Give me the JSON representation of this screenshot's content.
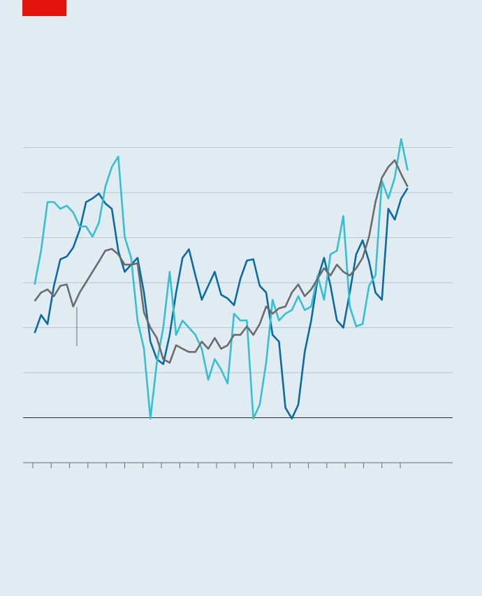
{
  "chart_data": {
    "type": "line",
    "xlim": [
      -0.53,
      22.85
    ],
    "xticks": [
      0,
      1,
      2,
      3,
      4,
      5,
      6,
      7,
      8,
      9,
      10,
      11,
      12,
      13,
      14,
      15,
      16,
      17,
      18,
      19,
      20
    ],
    "ylim": [
      -1,
      7
    ],
    "yticks": [
      0,
      1,
      2,
      3,
      4,
      5,
      6
    ],
    "grid": true,
    "x": [
      0.1,
      0.45,
      0.8,
      1.15,
      1.5,
      1.85,
      2.2,
      2.55,
      2.9,
      3.25,
      3.6,
      3.95,
      4.3,
      4.65,
      5,
      5.35,
      5.7,
      6.05,
      6.4,
      6.75,
      7.1,
      7.45,
      7.8,
      8.15,
      8.5,
      8.85,
      9.2,
      9.55,
      9.9,
      10.25,
      10.6,
      10.95,
      11.3,
      11.65,
      12,
      12.35,
      12.7,
      13.05,
      13.4,
      13.75,
      14.1,
      14.45,
      14.8,
      15.15,
      15.5,
      15.85,
      16.2,
      16.55,
      16.9,
      17.25,
      17.6,
      17.95,
      18.3,
      18.65,
      19,
      19.35,
      19.7,
      20.05,
      20.4
    ],
    "series": [
      {
        "color": "#0c6aa3",
        "values": [
          1.88,
          2.28,
          2.08,
          2.93,
          3.52,
          3.58,
          3.78,
          4.17,
          4.79,
          4.87,
          4.98,
          4.76,
          4.64,
          3.71,
          3.24,
          3.4,
          3.55,
          2.78,
          1.69,
          1.3,
          1.19,
          1.84,
          2.78,
          3.55,
          3.74,
          3.16,
          2.62,
          2.93,
          3.24,
          2.73,
          2.65,
          2.5,
          3.09,
          3.49,
          3.52,
          2.93,
          2.78,
          1.84,
          1.69,
          0.22,
          -0.02,
          0.29,
          1.46,
          2.16,
          3.09,
          3.55,
          2.93,
          2.16,
          2.0,
          2.78,
          3.63,
          3.94,
          3.47,
          2.78,
          2.62,
          4.64,
          4.4,
          4.87,
          5.1
        ]
      },
      {
        "color": "#36bfd1",
        "values": [
          2.96,
          3.71,
          4.79,
          4.79,
          4.64,
          4.71,
          4.56,
          4.25,
          4.25,
          4.02,
          4.33,
          5.13,
          5.57,
          5.8,
          4.02,
          3.55,
          2.16,
          1.53,
          -0.02,
          1.22,
          2.0,
          3.24,
          1.84,
          2.16,
          2.0,
          1.84,
          1.53,
          0.84,
          1.3,
          1.07,
          0.76,
          2.31,
          2.16,
          2.16,
          -0.02,
          0.29,
          1.22,
          2.62,
          2.16,
          2.31,
          2.39,
          2.7,
          2.39,
          2.47,
          3.16,
          2.62,
          3.63,
          3.71,
          4.48,
          2.47,
          2.03,
          2.08,
          2.93,
          3.16,
          5.26,
          4.87,
          5.33,
          6.19,
          5.49
        ]
      },
      {
        "color": "#6b6b6b",
        "values": [
          2.59,
          2.78,
          2.85,
          2.7,
          2.93,
          2.96,
          2.47,
          2.78,
          3.01,
          3.24,
          3.47,
          3.71,
          3.75,
          3.63,
          3.4,
          3.4,
          3.43,
          2.34,
          2.0,
          1.77,
          1.3,
          1.22,
          1.61,
          1.53,
          1.46,
          1.46,
          1.69,
          1.53,
          1.77,
          1.53,
          1.61,
          1.84,
          1.84,
          2.03,
          1.84,
          2.08,
          2.47,
          2.31,
          2.43,
          2.47,
          2.78,
          2.96,
          2.7,
          2.85,
          3.09,
          3.32,
          3.16,
          3.4,
          3.24,
          3.16,
          3.32,
          3.55,
          4.02,
          4.79,
          5.33,
          5.57,
          5.72,
          5.41,
          5.13
        ]
      }
    ]
  }
}
